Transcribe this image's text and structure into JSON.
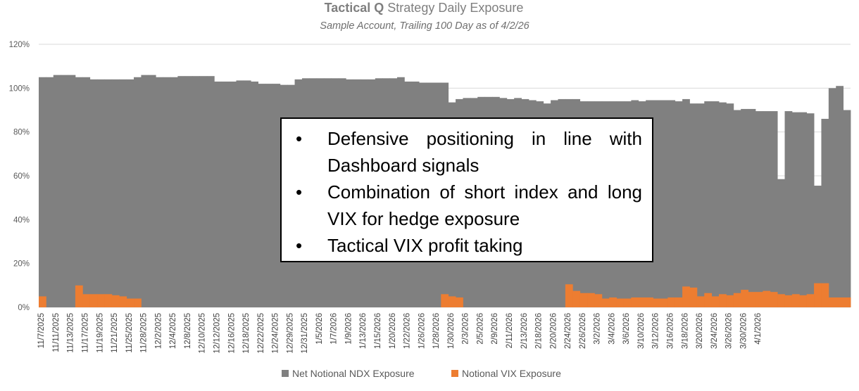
{
  "chart_data": {
    "type": "bar",
    "stacking": "overlap",
    "title_bold": "Tactical Q",
    "title_rest": " Strategy Daily Exposure",
    "subtitle": "Sample Account, Trailing 100 Day as of 4/2/26",
    "xlabel": "",
    "ylabel": "",
    "ylim": [
      0,
      1.2
    ],
    "yticks": [
      "0%",
      "20%",
      "40%",
      "60%",
      "80%",
      "100%",
      "120%"
    ],
    "grid": true,
    "legend_position": "bottom",
    "colors": {
      "ndx": "#808080",
      "vix": "#ed7d31"
    },
    "tick_labels": [
      "11/7/2025",
      "11/11/2025",
      "11/13/2025",
      "11/17/2025",
      "11/19/2025",
      "11/21/2025",
      "11/25/2025",
      "11/28/2025",
      "12/2/2025",
      "12/4/2025",
      "12/8/2025",
      "12/10/2025",
      "12/12/2025",
      "12/16/2025",
      "12/18/2025",
      "12/22/2025",
      "12/24/2025",
      "12/29/2025",
      "12/31/2025",
      "1/5/2026",
      "1/7/2026",
      "1/9/2026",
      "1/13/2026",
      "1/15/2026",
      "1/20/2026",
      "1/22/2026",
      "1/26/2026",
      "1/28/2026",
      "1/30/2026",
      "2/3/2026",
      "2/5/2026",
      "2/9/2026",
      "2/11/2026",
      "2/13/2026",
      "2/18/2026",
      "2/20/2026",
      "2/24/2026",
      "2/26/2026",
      "3/2/2026",
      "3/4/2026",
      "3/6/2026",
      "3/10/2026",
      "3/12/2026",
      "3/16/2026",
      "3/18/2026",
      "3/20/2026",
      "3/24/2026",
      "3/26/2026",
      "3/30/2026",
      "4/1/2026"
    ],
    "series": [
      {
        "name": "Net Notional NDX Exposure",
        "values": [
          1.05,
          1.05,
          1.06,
          1.06,
          1.06,
          1.05,
          1.05,
          1.04,
          1.04,
          1.04,
          1.04,
          1.04,
          1.04,
          1.05,
          1.06,
          1.06,
          1.05,
          1.05,
          1.05,
          1.055,
          1.055,
          1.055,
          1.055,
          1.055,
          1.03,
          1.03,
          1.03,
          1.035,
          1.035,
          1.03,
          1.02,
          1.02,
          1.02,
          1.015,
          1.015,
          1.04,
          1.045,
          1.045,
          1.045,
          1.045,
          1.045,
          1.045,
          1.04,
          1.04,
          1.04,
          1.04,
          1.045,
          1.045,
          1.045,
          1.05,
          1.03,
          1.03,
          1.025,
          1.025,
          1.025,
          1.025,
          0.935,
          0.95,
          0.955,
          0.955,
          0.96,
          0.96,
          0.96,
          0.955,
          0.95,
          0.955,
          0.95,
          0.945,
          0.94,
          0.93,
          0.945,
          0.95,
          0.95,
          0.95,
          0.94,
          0.94,
          0.94,
          0.94,
          0.94,
          0.94,
          0.94,
          0.945,
          0.94,
          0.945,
          0.945,
          0.945,
          0.945,
          0.94,
          0.95,
          0.93,
          0.93,
          0.94,
          0.94,
          0.935,
          0.93,
          0.9,
          0.905,
          0.905,
          0.895,
          0.895,
          0.895,
          0.585,
          0.895,
          0.89,
          0.89,
          0.885,
          0.555,
          0.86,
          1.0,
          1.01,
          0.9
        ]
      },
      {
        "name": "Notional VIX Exposure",
        "values": [
          0.05,
          0,
          0,
          0,
          0,
          0.1,
          0.06,
          0.06,
          0.06,
          0.06,
          0.055,
          0.05,
          0.04,
          0.04,
          0,
          0,
          0,
          0,
          0,
          0,
          0,
          0,
          0,
          0,
          0,
          0,
          0,
          0,
          0,
          0,
          0,
          0,
          0,
          0,
          0,
          0,
          0,
          0,
          0,
          0,
          0,
          0,
          0,
          0,
          0,
          0,
          0,
          0,
          0,
          0,
          0,
          0,
          0,
          0,
          0,
          0.06,
          0.05,
          0.045,
          0,
          0,
          0,
          0,
          0,
          0,
          0,
          0,
          0,
          0,
          0,
          0,
          0,
          0,
          0.105,
          0.075,
          0.065,
          0.065,
          0.06,
          0.04,
          0.045,
          0.04,
          0.04,
          0.045,
          0.045,
          0.045,
          0.04,
          0.04,
          0.045,
          0.045,
          0.095,
          0.09,
          0.05,
          0.065,
          0.05,
          0.06,
          0.055,
          0.065,
          0.08,
          0.07,
          0.07,
          0.075,
          0.07,
          0.06,
          0.055,
          0.06,
          0.055,
          0.06,
          0.11,
          0.11,
          0.045,
          0.045,
          0.045
        ]
      }
    ]
  },
  "callout": {
    "bullet_char": "•",
    "items": [
      "Defensive positioning in line with Dashboard signals",
      "Combination of short index and long VIX for hedge exposure",
      "Tactical VIX profit taking"
    ]
  }
}
